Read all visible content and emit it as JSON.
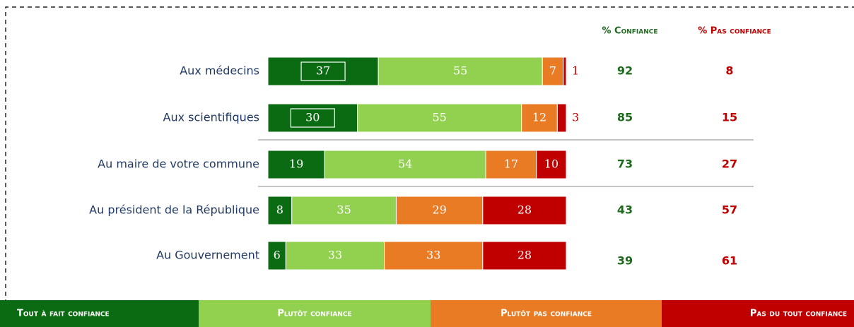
{
  "chart_data": {
    "type": "stacked-bar-horizontal",
    "categories": [
      "Aux médecins",
      "Aux scientifiques",
      "Au maire de votre commune",
      "Au président de la République",
      "Au Gouvernement"
    ],
    "series": [
      {
        "name": "Tout à fait confiance",
        "color": "#0b6b12",
        "values": [
          37,
          30,
          19,
          8,
          6
        ]
      },
      {
        "name": "Plutôt confiance",
        "color": "#92d050",
        "values": [
          55,
          55,
          54,
          35,
          33
        ]
      },
      {
        "name": "Plutôt pas confiance",
        "color": "#e97b25",
        "values": [
          7,
          12,
          17,
          29,
          33
        ]
      },
      {
        "name": "Pas du tout confiance",
        "color": "#c00000",
        "values": [
          1,
          3,
          10,
          28,
          28
        ]
      }
    ],
    "summary_columns": [
      {
        "name": "% Confiance",
        "color": "#1e6b1e",
        "values": [
          92,
          85,
          73,
          43,
          39
        ]
      },
      {
        "name": "% Pas confiance",
        "color": "#c00000",
        "values": [
          8,
          15,
          27,
          57,
          61
        ]
      }
    ]
  }
}
